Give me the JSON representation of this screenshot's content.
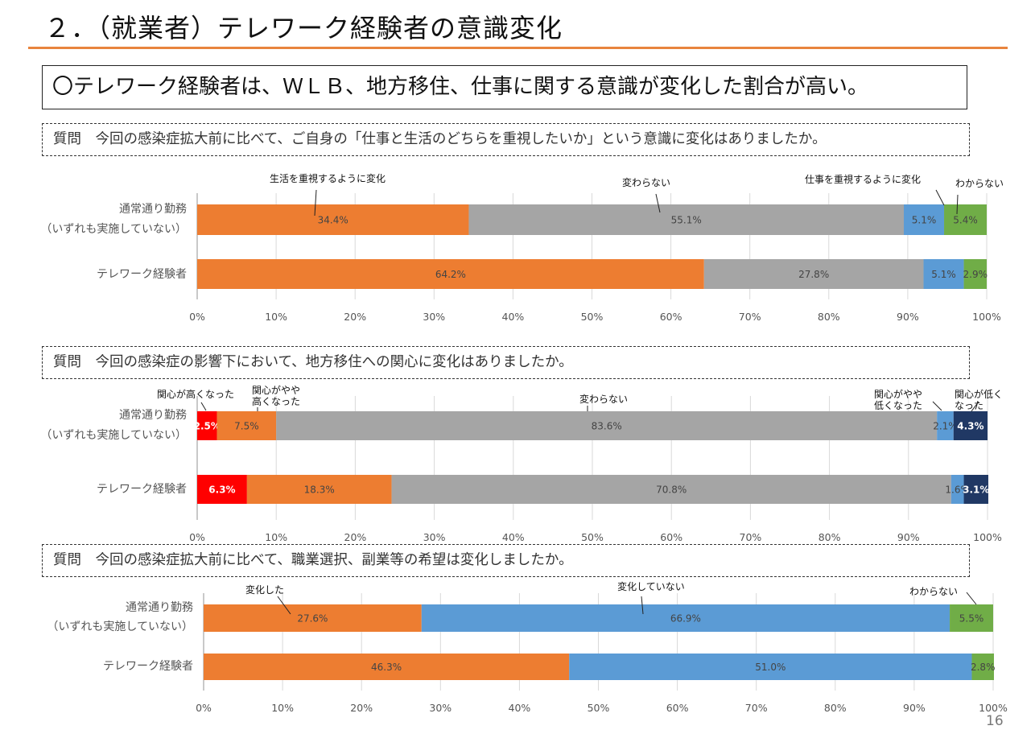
{
  "page": {
    "title": "２．（就業者）テレワーク経験者の意識変化",
    "conclusion": "〇テレワーク経験者は、ＷＬＢ、地方移住、仕事に関する意識が変化した割合が高い。",
    "page_number": "16",
    "accent_color": "#e8843d"
  },
  "chart_data": [
    {
      "type": "bar",
      "orientation": "horizontal",
      "stacked": "100%",
      "question": "質問　今回の感染症拡大前に比べて、ご自身の「仕事と生活のどちらを重視したいか」という意識に変化はありましたか。",
      "categories": [
        "通常通り勤務\n（いずれも実施していない）",
        "テレワーク経験者"
      ],
      "category_lines": [
        [
          "通常通り勤務",
          "（いずれも実施していない）"
        ],
        [
          "テレワーク経験者"
        ]
      ],
      "series": [
        {
          "name": "生活を重視するように変化",
          "color": "#ed7d31",
          "values": [
            34.4,
            64.2
          ],
          "labels": [
            "34.4%",
            "64.2%"
          ],
          "label_color": "dark"
        },
        {
          "name": "変わらない",
          "color": "#a5a5a5",
          "values": [
            55.1,
            27.8
          ],
          "labels": [
            "55.1%",
            "27.8%"
          ],
          "label_color": "dark"
        },
        {
          "name": "仕事を重視するように変化",
          "color": "#5b9bd5",
          "values": [
            5.1,
            5.1
          ],
          "labels": [
            "5.1%",
            "5.1%"
          ],
          "label_color": "dark"
        },
        {
          "name": "わからない",
          "color": "#70ad47",
          "values": [
            5.4,
            2.9
          ],
          "labels": [
            "5.4%",
            "2.9%"
          ],
          "label_color": "dark"
        }
      ],
      "xlim": [
        0,
        100
      ],
      "xticks": [
        "0%",
        "10%",
        "20%",
        "30%",
        "40%",
        "50%",
        "60%",
        "70%",
        "80%",
        "90%",
        "100%"
      ],
      "grid": true,
      "legend": "callout-labels-top"
    },
    {
      "type": "bar",
      "orientation": "horizontal",
      "stacked": "100%",
      "question": "質問　今回の感染症の影響下において、地方移住への関心に変化はありましたか。",
      "categories": [
        "通常通り勤務\n（いずれも実施していない）",
        "テレワーク経験者"
      ],
      "category_lines": [
        [
          "通常通り勤務",
          "（いずれも実施していない）"
        ],
        [
          "テレワーク経験者"
        ]
      ],
      "series": [
        {
          "name": "関心が高くなった",
          "name_lines": [
            "関心が高くなった"
          ],
          "color": "#ff0000",
          "values": [
            2.5,
            6.3
          ],
          "labels": [
            "2.5%",
            "6.3%"
          ],
          "label_color": "white"
        },
        {
          "name": "関心がやや高くなった",
          "name_lines": [
            "関心がやや",
            "高くなった"
          ],
          "color": "#ed7d31",
          "values": [
            7.5,
            18.3
          ],
          "labels": [
            "7.5%",
            "18.3%"
          ],
          "label_color": "dark"
        },
        {
          "name": "変わらない",
          "name_lines": [
            "変わらない"
          ],
          "color": "#a5a5a5",
          "values": [
            83.6,
            70.8
          ],
          "labels": [
            "83.6%",
            "70.8%"
          ],
          "label_color": "dark"
        },
        {
          "name": "関心がやや低くなった",
          "name_lines": [
            "関心がやや",
            "低くなった"
          ],
          "color": "#5b9bd5",
          "values": [
            2.1,
            1.6
          ],
          "labels": [
            "2.1%",
            "1.6%"
          ],
          "label_color": "dark"
        },
        {
          "name": "関心が低くなった",
          "name_lines": [
            "関心が低く",
            "なった"
          ],
          "color": "#203864",
          "values": [
            4.3,
            3.1
          ],
          "labels": [
            "4.3%",
            "3.1%"
          ],
          "label_color": "white"
        }
      ],
      "xlim": [
        0,
        100
      ],
      "xticks": [
        "0%",
        "10%",
        "20%",
        "30%",
        "40%",
        "50%",
        "60%",
        "70%",
        "80%",
        "90%",
        "100%"
      ],
      "grid": true,
      "legend": "callout-labels-top"
    },
    {
      "type": "bar",
      "orientation": "horizontal",
      "stacked": "100%",
      "question": "質問　今回の感染症拡大前に比べて、職業選択、副業等の希望は変化しましたか。",
      "categories": [
        "通常通り勤務\n（いずれも実施していない）",
        "テレワーク経験者"
      ],
      "category_lines": [
        [
          "通常通り勤務",
          "（いずれも実施していない）"
        ],
        [
          "テレワーク経験者"
        ]
      ],
      "series": [
        {
          "name": "変化した",
          "color": "#ed7d31",
          "values": [
            27.6,
            46.3
          ],
          "labels": [
            "27.6%",
            "46.3%"
          ],
          "label_color": "dark"
        },
        {
          "name": "変化していない",
          "color": "#5b9bd5",
          "values": [
            66.9,
            51.0
          ],
          "labels": [
            "66.9%",
            "51.0%"
          ],
          "label_color": "dark"
        },
        {
          "name": "わからない",
          "color": "#70ad47",
          "values": [
            5.5,
            2.8
          ],
          "labels": [
            "5.5%",
            "2.8%"
          ],
          "label_color": "dark"
        }
      ],
      "xlim": [
        0,
        100
      ],
      "xticks": [
        "0%",
        "10%",
        "20%",
        "30%",
        "40%",
        "50%",
        "60%",
        "70%",
        "80%",
        "90%",
        "100%"
      ],
      "grid": true,
      "legend": "callout-labels-top"
    }
  ]
}
